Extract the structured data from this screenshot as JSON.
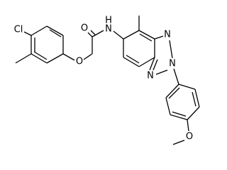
{
  "atoms": [
    "Cl",
    "O",
    "O",
    "H",
    "N",
    "N",
    "N",
    "N",
    "O"
  ]
}
